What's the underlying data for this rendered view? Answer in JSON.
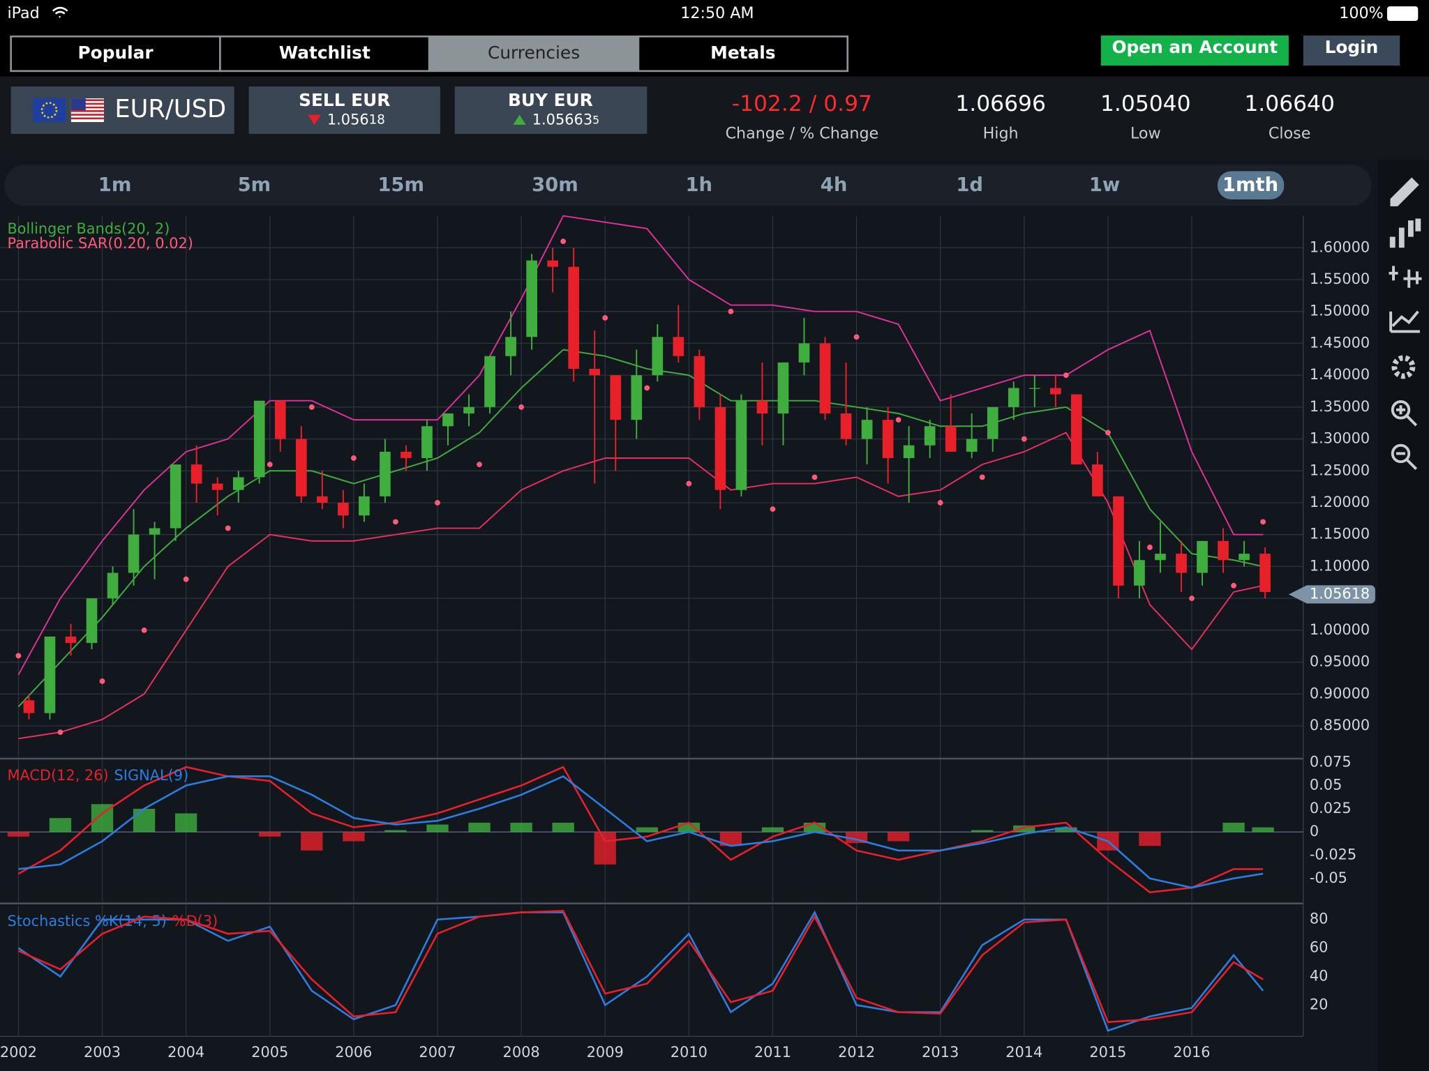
{
  "status_bar": {
    "device": "iPad",
    "time": "12:50 AM",
    "battery": "100%"
  },
  "tabs": [
    "Popular",
    "Watchlist",
    "Currencies",
    "Metals"
  ],
  "account_buttons": [
    "Open an Account",
    "Login"
  ],
  "instrument": {
    "pair": "EUR/USD",
    "sell_label": "SELL EUR",
    "sell_price": [
      "1.056",
      "18"
    ],
    "buy_label": "BUY EUR",
    "buy_price": [
      "1.056",
      "63",
      "5"
    ]
  },
  "stats": {
    "change": "-102.2 / 0.97",
    "change_label": "Change / % Change",
    "high": "1.06696",
    "high_label": "High",
    "low": "1.05040",
    "low_label": "Low",
    "close": "1.06640",
    "close_label": "Close"
  },
  "timeframes": [
    "1m",
    "5m",
    "15m",
    "30m",
    "1h",
    "4h",
    "1d",
    "1w",
    "1mth"
  ],
  "chart_data": [
    {
      "type": "candlestick",
      "up_color": "#3fae3f",
      "down_color": "#e8202a",
      "grid": true,
      "xlim": [
        2001.78,
        2017.33
      ],
      "xticks": [
        2002,
        2003,
        2004,
        2005,
        2006,
        2007,
        2008,
        2009,
        2010,
        2011,
        2012,
        2013,
        2014,
        2015,
        2016
      ],
      "ylim": [
        0.8,
        1.65
      ],
      "yticks": [
        {
          "value": 0.85,
          "label": "0.85000"
        },
        {
          "value": 0.9,
          "label": "0.90000"
        },
        {
          "value": 0.95,
          "label": "0.95000"
        },
        {
          "value": 1.0,
          "label": "1.00000"
        },
        {
          "value": 1.05,
          "label": "1.05000"
        },
        {
          "value": 1.1,
          "label": "1.10000"
        },
        {
          "value": 1.15,
          "label": "1.15000"
        },
        {
          "value": 1.2,
          "label": "1.20000"
        },
        {
          "value": 1.25,
          "label": "1.25000"
        },
        {
          "value": 1.3,
          "label": "1.30000"
        },
        {
          "value": 1.35,
          "label": "1.35000"
        },
        {
          "value": 1.4,
          "label": "1.40000"
        },
        {
          "value": 1.45,
          "label": "1.45000"
        },
        {
          "value": 1.5,
          "label": "1.50000"
        },
        {
          "value": 1.55,
          "label": "1.55000"
        },
        {
          "value": 1.6,
          "label": "1.60000"
        }
      ],
      "last_price": 1.05618,
      "x": [
        2002.125,
        2002.375,
        2002.625,
        2002.875,
        2003.125,
        2003.375,
        2003.625,
        2003.875,
        2004.125,
        2004.375,
        2004.625,
        2004.875,
        2005.125,
        2005.375,
        2005.625,
        2005.875,
        2006.125,
        2006.375,
        2006.625,
        2006.875,
        2007.125,
        2007.375,
        2007.625,
        2007.875,
        2008.125,
        2008.375,
        2008.625,
        2008.875,
        2009.125,
        2009.375,
        2009.625,
        2009.875,
        2010.125,
        2010.375,
        2010.625,
        2010.875,
        2011.125,
        2011.375,
        2011.625,
        2011.875,
        2012.125,
        2012.375,
        2012.625,
        2012.875,
        2013.125,
        2013.375,
        2013.625,
        2013.875,
        2014.125,
        2014.375,
        2014.625,
        2014.875,
        2015.125,
        2015.375,
        2015.625,
        2015.875,
        2016.125,
        2016.375,
        2016.625,
        2016.875
      ],
      "open": [
        0.89,
        0.87,
        0.99,
        0.98,
        1.05,
        1.09,
        1.15,
        1.16,
        1.26,
        1.23,
        1.22,
        1.24,
        1.36,
        1.3,
        1.21,
        1.2,
        1.18,
        1.21,
        1.28,
        1.27,
        1.32,
        1.34,
        1.35,
        1.43,
        1.46,
        1.58,
        1.57,
        1.41,
        1.4,
        1.33,
        1.4,
        1.46,
        1.43,
        1.35,
        1.22,
        1.36,
        1.34,
        1.42,
        1.45,
        1.34,
        1.3,
        1.33,
        1.27,
        1.29,
        1.32,
        1.28,
        1.3,
        1.35,
        1.38,
        1.38,
        1.37,
        1.26,
        1.21,
        1.07,
        1.11,
        1.12,
        1.09,
        1.14,
        1.11,
        1.12
      ],
      "high": [
        0.9,
        0.99,
        1.01,
        1.05,
        1.1,
        1.19,
        1.17,
        1.26,
        1.29,
        1.24,
        1.25,
        1.36,
        1.36,
        1.32,
        1.25,
        1.22,
        1.23,
        1.3,
        1.29,
        1.33,
        1.34,
        1.37,
        1.43,
        1.5,
        1.59,
        1.6,
        1.6,
        1.47,
        1.4,
        1.44,
        1.48,
        1.51,
        1.44,
        1.37,
        1.37,
        1.42,
        1.42,
        1.49,
        1.46,
        1.42,
        1.35,
        1.35,
        1.32,
        1.33,
        1.37,
        1.34,
        1.35,
        1.39,
        1.4,
        1.4,
        1.37,
        1.28,
        1.21,
        1.14,
        1.17,
        1.14,
        1.14,
        1.16,
        1.14,
        1.13
      ],
      "low": [
        0.86,
        0.86,
        0.96,
        0.97,
        1.04,
        1.07,
        1.08,
        1.14,
        1.2,
        1.18,
        1.2,
        1.23,
        1.28,
        1.2,
        1.19,
        1.16,
        1.17,
        1.2,
        1.25,
        1.25,
        1.29,
        1.32,
        1.34,
        1.4,
        1.44,
        1.53,
        1.39,
        1.23,
        1.25,
        1.3,
        1.39,
        1.42,
        1.33,
        1.19,
        1.21,
        1.29,
        1.29,
        1.4,
        1.33,
        1.29,
        1.26,
        1.23,
        1.2,
        1.27,
        1.28,
        1.27,
        1.28,
        1.33,
        1.35,
        1.35,
        1.26,
        1.21,
        1.05,
        1.05,
        1.09,
        1.06,
        1.07,
        1.09,
        1.1,
        1.05
      ],
      "close": [
        0.87,
        0.99,
        0.98,
        1.05,
        1.09,
        1.15,
        1.16,
        1.26,
        1.23,
        1.22,
        1.24,
        1.36,
        1.3,
        1.21,
        1.2,
        1.18,
        1.21,
        1.28,
        1.27,
        1.32,
        1.34,
        1.35,
        1.43,
        1.46,
        1.58,
        1.57,
        1.41,
        1.4,
        1.33,
        1.4,
        1.46,
        1.43,
        1.35,
        1.22,
        1.36,
        1.34,
        1.42,
        1.45,
        1.34,
        1.3,
        1.33,
        1.27,
        1.29,
        1.32,
        1.28,
        1.3,
        1.35,
        1.38,
        1.38,
        1.37,
        1.26,
        1.21,
        1.07,
        1.11,
        1.12,
        1.09,
        1.14,
        1.11,
        1.12,
        1.06
      ],
      "bollinger": {
        "name": "Bollinger Bands(20, 2)",
        "color": "#3fae3f",
        "band_color": "#e0309a",
        "lower_color": "#e83060",
        "x": [
          2002.0,
          2002.5,
          2003.0,
          2003.5,
          2004.0,
          2004.5,
          2005.0,
          2005.5,
          2006.0,
          2006.5,
          2007.0,
          2007.5,
          2008.0,
          2008.5,
          2009.0,
          2009.5,
          2010.0,
          2010.5,
          2011.0,
          2011.5,
          2012.0,
          2012.5,
          2013.0,
          2013.5,
          2014.0,
          2014.5,
          2015.0,
          2015.5,
          2016.0,
          2016.5,
          2016.85
        ],
        "upper": [
          0.93,
          1.05,
          1.14,
          1.22,
          1.28,
          1.3,
          1.36,
          1.36,
          1.33,
          1.33,
          1.33,
          1.4,
          1.52,
          1.65,
          1.64,
          1.63,
          1.55,
          1.51,
          1.51,
          1.5,
          1.5,
          1.48,
          1.36,
          1.38,
          1.4,
          1.4,
          1.44,
          1.47,
          1.28,
          1.15,
          1.15
        ],
        "middle": [
          0.88,
          0.95,
          1.02,
          1.1,
          1.16,
          1.21,
          1.25,
          1.25,
          1.23,
          1.25,
          1.27,
          1.31,
          1.38,
          1.44,
          1.43,
          1.41,
          1.4,
          1.36,
          1.36,
          1.36,
          1.35,
          1.34,
          1.32,
          1.32,
          1.34,
          1.35,
          1.31,
          1.19,
          1.12,
          1.11,
          1.1
        ],
        "lower": [
          0.83,
          0.84,
          0.86,
          0.9,
          1.0,
          1.1,
          1.15,
          1.14,
          1.14,
          1.15,
          1.16,
          1.16,
          1.22,
          1.25,
          1.27,
          1.27,
          1.27,
          1.22,
          1.23,
          1.23,
          1.24,
          1.21,
          1.22,
          1.26,
          1.28,
          1.31,
          1.2,
          1.04,
          0.97,
          1.06,
          1.07
        ]
      },
      "sar": {
        "name": "Parabolic SAR(0.20, 0.02)",
        "color": "#ff5a7a",
        "x": [
          2002.0,
          2002.5,
          2003.0,
          2003.5,
          2004.0,
          2004.5,
          2005.0,
          2005.5,
          2006.0,
          2006.5,
          2007.0,
          2007.5,
          2008.0,
          2008.5,
          2009.0,
          2009.5,
          2010.0,
          2010.5,
          2011.0,
          2011.5,
          2012.0,
          2012.5,
          2013.0,
          2013.5,
          2014.0,
          2014.5,
          2015.0,
          2015.5,
          2016.0,
          2016.5,
          2016.85
        ],
        "values": [
          0.96,
          0.84,
          0.92,
          1.0,
          1.08,
          1.16,
          1.26,
          1.35,
          1.27,
          1.17,
          1.2,
          1.26,
          1.35,
          1.61,
          1.49,
          1.38,
          1.23,
          1.5,
          1.19,
          1.24,
          1.46,
          1.33,
          1.2,
          1.24,
          1.3,
          1.4,
          1.31,
          1.13,
          1.05,
          1.07,
          1.17
        ]
      }
    },
    {
      "type": "macd",
      "ylim": [
        -0.075,
        0.078
      ],
      "yticks": [
        0.075,
        0.05,
        0.025,
        0,
        -0.025,
        -0.05
      ],
      "grid": true,
      "x": [
        2002.0,
        2002.5,
        2003.0,
        2003.5,
        2004.0,
        2004.5,
        2005.0,
        2005.5,
        2006.0,
        2006.5,
        2007.0,
        2007.5,
        2008.0,
        2008.5,
        2009.0,
        2009.5,
        2010.0,
        2010.5,
        2011.0,
        2011.5,
        2012.0,
        2012.5,
        2013.0,
        2013.5,
        2014.0,
        2014.5,
        2015.0,
        2015.5,
        2016.0,
        2016.5,
        2016.85
      ],
      "series": [
        {
          "name": "MACD(12, 26)",
          "color": "#e8202a",
          "values": [
            -0.045,
            -0.02,
            0.02,
            0.05,
            0.07,
            0.06,
            0.055,
            0.02,
            0.005,
            0.01,
            0.02,
            0.035,
            0.05,
            0.07,
            -0.01,
            -0.005,
            0.01,
            -0.03,
            -0.005,
            0.01,
            -0.02,
            -0.03,
            -0.02,
            -0.01,
            0.005,
            0.01,
            -0.03,
            -0.065,
            -0.06,
            -0.04,
            -0.04
          ]
        },
        {
          "name": "SIGNAL(9)",
          "color": "#2a7de1",
          "values": [
            -0.04,
            -0.035,
            -0.01,
            0.025,
            0.05,
            0.06,
            0.06,
            0.04,
            0.015,
            0.008,
            0.012,
            0.025,
            0.04,
            0.06,
            0.025,
            -0.01,
            0,
            -0.015,
            -0.01,
            0,
            -0.008,
            -0.02,
            -0.02,
            -0.012,
            -0.002,
            0.005,
            -0.01,
            -0.05,
            -0.06,
            -0.05,
            -0.045
          ]
        }
      ],
      "histogram": [
        -0.005,
        0.015,
        0.03,
        0.025,
        0.02,
        0,
        -0.005,
        -0.02,
        -0.01,
        0.002,
        0.008,
        0.01,
        0.01,
        0.01,
        -0.035,
        0.005,
        0.01,
        -0.015,
        0.005,
        0.01,
        -0.012,
        -0.01,
        0,
        0.002,
        0.007,
        0.005,
        -0.02,
        -0.015,
        0,
        0.01,
        0.005
      ],
      "positive_color": "#3fae3f",
      "negative_color": "#e8202a"
    },
    {
      "type": "line",
      "ylim": [
        -2,
        90
      ],
      "yticks": [
        80,
        60,
        40,
        20
      ],
      "grid": true,
      "x": [
        2002.0,
        2002.5,
        2003.0,
        2003.5,
        2004.0,
        2004.5,
        2005.0,
        2005.5,
        2006.0,
        2006.5,
        2007.0,
        2007.5,
        2008.0,
        2008.5,
        2009.0,
        2009.5,
        2010.0,
        2010.5,
        2011.0,
        2011.5,
        2012.0,
        2012.5,
        2013.0,
        2013.5,
        2014.0,
        2014.5,
        2015.0,
        2015.5,
        2016.0,
        2016.5,
        2016.85
      ],
      "series": [
        {
          "name": "Stochastics %K(14, 5)",
          "color": "#2a7de1",
          "values": [
            60,
            40,
            80,
            80,
            80,
            65,
            75,
            30,
            10,
            20,
            80,
            82,
            85,
            85,
            20,
            40,
            70,
            15,
            35,
            85,
            20,
            15,
            15,
            62,
            80,
            80,
            2,
            12,
            18,
            55,
            30
          ]
        },
        {
          "name": "%D(3)",
          "color": "#e8202a",
          "values": [
            58,
            45,
            70,
            82,
            80,
            70,
            72,
            38,
            12,
            15,
            70,
            82,
            85,
            86,
            28,
            35,
            65,
            22,
            30,
            82,
            25,
            15,
            14,
            55,
            78,
            80,
            8,
            10,
            15,
            50,
            38
          ]
        }
      ]
    }
  ]
}
